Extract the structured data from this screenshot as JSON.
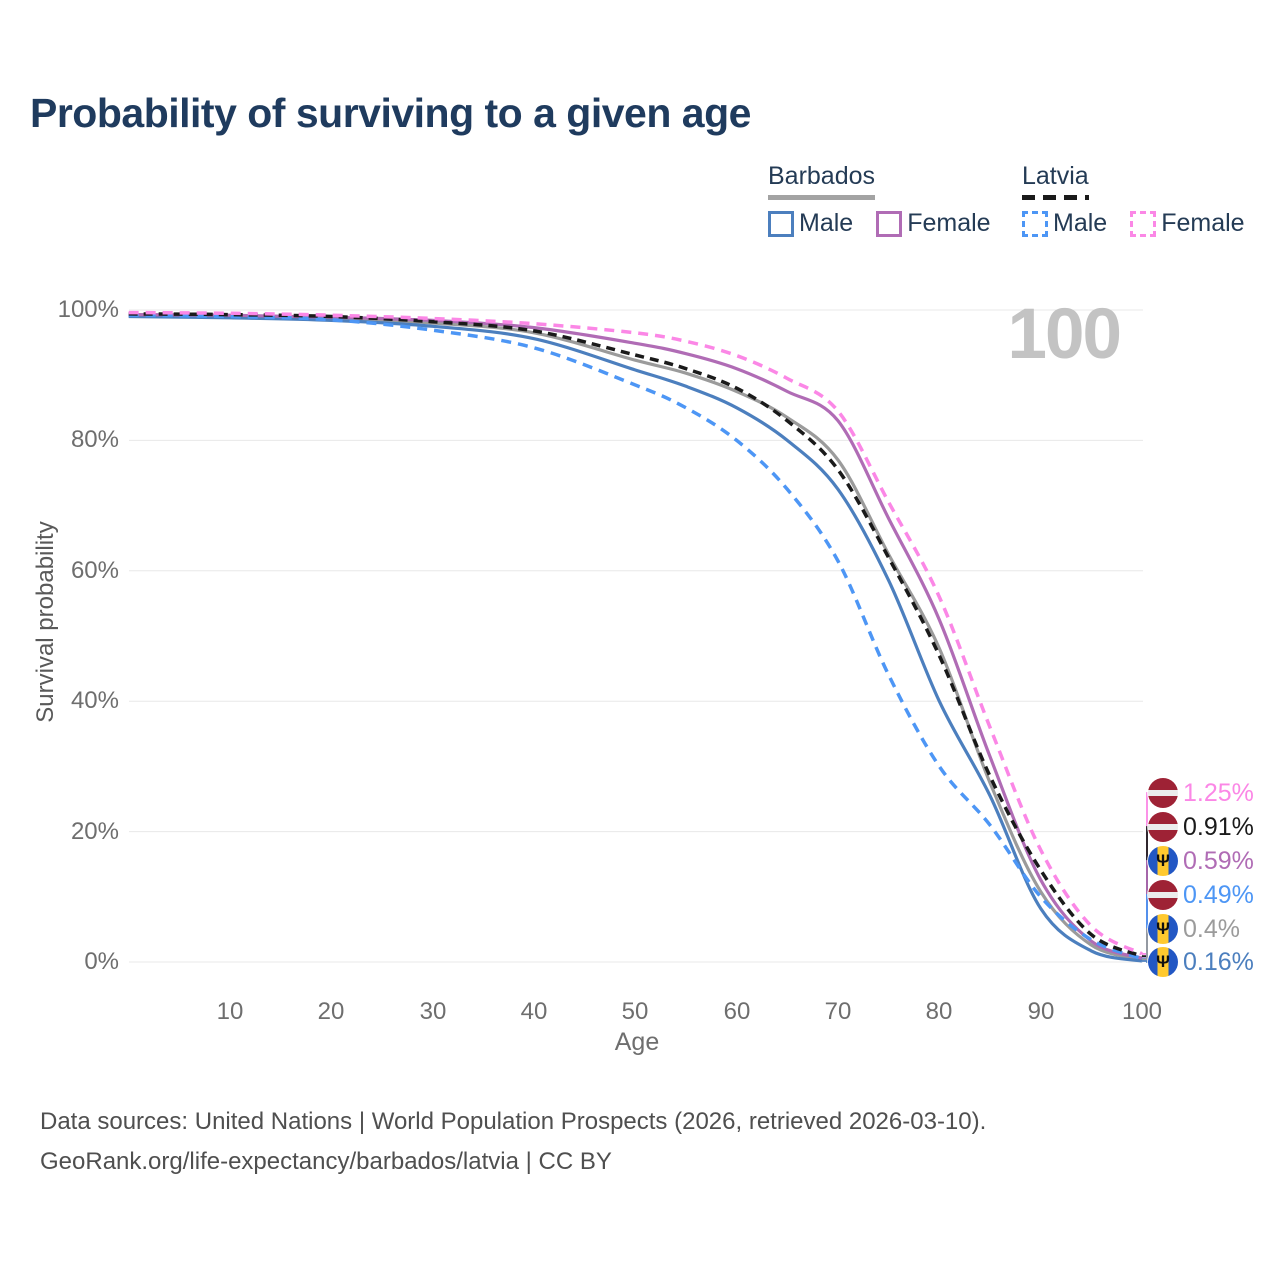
{
  "title": "Probability of surviving to a given age",
  "watermark": "100",
  "legend": {
    "groups": [
      {
        "name": "Barbados",
        "line_style": "solid",
        "line_color": "#A3A3A3",
        "items": [
          {
            "label": "Male",
            "color": "#4C7FBE",
            "dashed": false
          },
          {
            "label": "Female",
            "color": "#B06CB5",
            "dashed": false
          }
        ]
      },
      {
        "name": "Latvia",
        "line_style": "dashed",
        "line_color": "#1A1A1A",
        "items": [
          {
            "label": "Male",
            "color": "#4D96F5",
            "dashed": true
          },
          {
            "label": "Female",
            "color": "#FB87E6",
            "dashed": true
          }
        ]
      }
    ]
  },
  "chart_data": {
    "type": "line",
    "title": "Probability of surviving to a given age",
    "xlabel": "Age",
    "ylabel": "Survival probability",
    "xlim": [
      0,
      100
    ],
    "ylim": [
      0,
      100
    ],
    "x_ticks": [
      10,
      20,
      30,
      40,
      50,
      60,
      70,
      80,
      90,
      100
    ],
    "y_ticks": [
      "0%",
      "20%",
      "40%",
      "60%",
      "80%",
      "100%"
    ],
    "grid": "horizontal",
    "legend_position": "top-right",
    "x": [
      0,
      10,
      20,
      30,
      40,
      50,
      55,
      60,
      65,
      70,
      75,
      80,
      85,
      90,
      95,
      100
    ],
    "series": [
      {
        "id": "barbados_total",
        "name": "Barbados",
        "country": "Barbados",
        "sex": "Both",
        "color": "#9B9B9B",
        "dashed": false,
        "values": [
          99.1,
          99.0,
          98.7,
          98.0,
          96.5,
          92.3,
          90.3,
          87.5,
          83.5,
          77.0,
          62.5,
          48.1,
          27.5,
          10.8,
          2.6,
          0.4
        ],
        "end_value_pct": 0.4
      },
      {
        "id": "barbados_male",
        "name": "Barbados Male",
        "country": "Barbados",
        "sex": "Male",
        "color": "#4C7FBE",
        "dashed": false,
        "values": [
          99.0,
          98.8,
          98.4,
          97.5,
          95.6,
          90.8,
          88.3,
          85.0,
          80.0,
          72.5,
          58.5,
          40.0,
          25.5,
          8.2,
          1.7,
          0.16
        ],
        "end_value_pct": 0.16
      },
      {
        "id": "barbados_female",
        "name": "Barbados Female",
        "country": "Barbados",
        "sex": "Female",
        "color": "#B06CB5",
        "dashed": false,
        "values": [
          99.3,
          99.2,
          98.9,
          98.4,
          97.3,
          94.9,
          93.3,
          91.0,
          87.5,
          83.0,
          68.0,
          52.5,
          31.5,
          12.6,
          3.2,
          0.59
        ],
        "end_value_pct": 0.59
      },
      {
        "id": "latvia_male",
        "name": "Latvia Male",
        "country": "Latvia",
        "sex": "Male",
        "color": "#4D96F5",
        "dashed": true,
        "values": [
          99.2,
          99.0,
          98.5,
          96.9,
          94.2,
          88.5,
          85.0,
          80.0,
          72.5,
          61.5,
          44.0,
          30.0,
          21.0,
          10.0,
          3.4,
          0.49
        ],
        "end_value_pct": 0.49
      },
      {
        "id": "latvia_total",
        "name": "Latvia",
        "country": "Latvia",
        "sex": "Both",
        "color": "#1A1A1A",
        "dashed": true,
        "values": [
          99.4,
          99.3,
          99.0,
          98.2,
          96.8,
          93.1,
          91.0,
          88.0,
          83.0,
          75.5,
          62.0,
          47.0,
          28.5,
          14.1,
          4.2,
          0.91
        ],
        "end_value_pct": 0.91
      },
      {
        "id": "latvia_female",
        "name": "Latvia Female",
        "country": "Latvia",
        "sex": "Female",
        "color": "#FB87E6",
        "dashed": true,
        "values": [
          99.6,
          99.5,
          99.2,
          98.7,
          97.9,
          96.5,
          95.2,
          93.0,
          89.5,
          84.5,
          70.5,
          56.0,
          36.0,
          17.2,
          5.5,
          1.25
        ],
        "end_value_pct": 1.25
      }
    ]
  },
  "end_labels": [
    {
      "value": "1.25%",
      "series": "latvia_female",
      "flag": "latvia",
      "color": "#FB87E6"
    },
    {
      "value": "0.91%",
      "series": "latvia_total",
      "flag": "latvia",
      "color": "#1A1A1A"
    },
    {
      "value": "0.59%",
      "series": "barbados_female",
      "flag": "barbados",
      "color": "#B06CB5"
    },
    {
      "value": "0.49%",
      "series": "latvia_male",
      "flag": "latvia",
      "color": "#4D96F5"
    },
    {
      "value": "0.4%",
      "series": "barbados_total",
      "flag": "barbados",
      "color": "#9B9B9B"
    },
    {
      "value": "0.16%",
      "series": "barbados_male",
      "flag": "barbados",
      "color": "#4C7FBE"
    }
  ],
  "footer": {
    "line1": "Data sources: United Nations | World Population Prospects (2026, retrieved 2026-03-10).",
    "line2": "GeoRank.org/life-expectancy/barbados/latvia | CC BY"
  }
}
